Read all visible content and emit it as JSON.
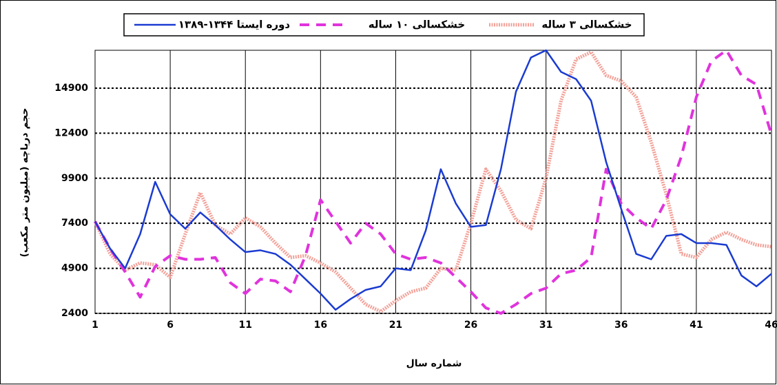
{
  "chart_data": {
    "type": "line",
    "x_label": "شماره سال",
    "y_label": "حجم دریاچه (میلیون متر مکعب)",
    "x": [
      1,
      2,
      3,
      4,
      5,
      6,
      7,
      8,
      9,
      10,
      11,
      12,
      13,
      14,
      15,
      16,
      17,
      18,
      19,
      20,
      21,
      22,
      23,
      24,
      25,
      26,
      27,
      28,
      29,
      30,
      31,
      32,
      33,
      34,
      35,
      36,
      37,
      38,
      39,
      40,
      41,
      42,
      43,
      44,
      45,
      46
    ],
    "xlim": [
      1,
      46
    ],
    "xticks": [
      1,
      6,
      11,
      16,
      21,
      26,
      31,
      36,
      41,
      46
    ],
    "ylim": [
      2400,
      17000
    ],
    "yticks": [
      2400,
      4900,
      7400,
      9900,
      12400,
      14900
    ],
    "grid": true,
    "series": [
      {
        "name": "دوره ایستا ۱۳۴۴-۱۳۸۹",
        "color": "#1a3bd1",
        "line_style": "solid",
        "values": [
          7500,
          6000,
          4900,
          6800,
          9700,
          7900,
          7100,
          8000,
          7300,
          6500,
          5800,
          5900,
          5700,
          5100,
          4300,
          3500,
          2600,
          3200,
          3700,
          3900,
          4900,
          4800,
          7000,
          10400,
          8500,
          7200,
          7300,
          10400,
          14700,
          16600,
          17000,
          15800,
          15400,
          14200,
          10800,
          8200,
          5700,
          5400,
          6700,
          6800,
          6300,
          6300,
          6200,
          4500,
          3900,
          4600
        ]
      },
      {
        "name": "خشکسالی ۱۰ ساله",
        "color": "#e033dc",
        "line_style": "dashed",
        "values": [
          7500,
          6000,
          4700,
          3300,
          5000,
          5600,
          5400,
          5400,
          5500,
          4100,
          3500,
          4300,
          4200,
          3600,
          5600,
          8700,
          7500,
          6300,
          7400,
          6800,
          5700,
          5400,
          5500,
          5200,
          4400,
          3600,
          2700,
          2400,
          2900,
          3500,
          3800,
          4600,
          4800,
          5500,
          10400,
          8500,
          7700,
          7100,
          8700,
          11100,
          14400,
          16400,
          17000,
          15600,
          15100,
          12300
        ]
      },
      {
        "name": "خشکسالی ۳ ساله",
        "color": "#f2a097",
        "line_style": "pattern",
        "values": [
          7500,
          5700,
          4800,
          5200,
          5100,
          4400,
          6800,
          9100,
          7300,
          6800,
          7700,
          7200,
          6300,
          5500,
          5600,
          5200,
          4700,
          3800,
          2900,
          2500,
          3100,
          3600,
          3800,
          4900,
          4800,
          7400,
          10400,
          9200,
          7600,
          7100,
          9900,
          14200,
          16500,
          16900,
          15600,
          15300,
          14400,
          11900,
          9000,
          5700,
          5500,
          6500,
          6900,
          6500,
          6200,
          6100
        ]
      }
    ]
  }
}
